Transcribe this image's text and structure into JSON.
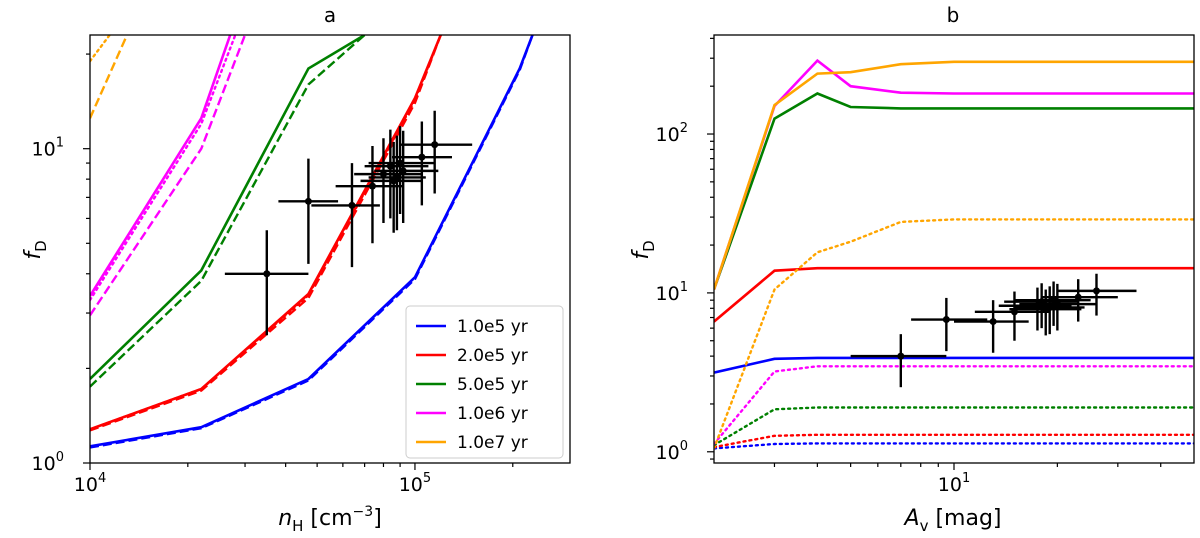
{
  "chart_data": [
    {
      "type": "line",
      "panel": "a",
      "title": "a",
      "xlabel": "n_H [cm^-3]",
      "ylabel": "f_D",
      "xscale": "log",
      "yscale": "log",
      "xlim": [
        10000,
        300000
      ],
      "ylim": [
        1,
        23
      ],
      "xticks": [
        {
          "value": 10000,
          "base": "10",
          "exp": "4"
        },
        {
          "value": 100000,
          "base": "10",
          "exp": "5"
        }
      ],
      "yticks": [
        {
          "value": 1,
          "base": "10",
          "exp": "0"
        },
        {
          "value": 10,
          "base": "10",
          "exp": "1"
        }
      ],
      "legend": {
        "position": "lower-right",
        "entries": [
          "1.0e5 yr",
          "2.0e5 yr",
          "5.0e5 yr",
          "1.0e6 yr",
          "1.0e7 yr"
        ]
      },
      "series": [
        {
          "name": "1.0e5 yr",
          "color": "#0000ff",
          "style": "solid",
          "x": [
            10000,
            22000,
            47000,
            100000,
            210000,
            230000
          ],
          "y": [
            1.13,
            1.3,
            1.85,
            3.9,
            18.0,
            23.0
          ]
        },
        {
          "name": "1.0e5 yr dashed",
          "color": "#0000ff",
          "style": "dashed",
          "x": [
            10000,
            22000,
            47000,
            100000,
            210000,
            230000
          ],
          "y": [
            1.12,
            1.29,
            1.83,
            3.85,
            17.8,
            23.0
          ]
        },
        {
          "name": "2.0e5 yr",
          "color": "#ff0000",
          "style": "solid",
          "x": [
            10000,
            22000,
            47000,
            100000,
            120000
          ],
          "y": [
            1.28,
            1.72,
            3.45,
            14.5,
            23.0
          ]
        },
        {
          "name": "2.0e5 yr dashed",
          "color": "#ff0000",
          "style": "dashed",
          "x": [
            10000,
            22000,
            47000,
            100000,
            120000
          ],
          "y": [
            1.27,
            1.7,
            3.35,
            14.0,
            23.0
          ]
        },
        {
          "name": "2.0e5 yr dotted",
          "color": "#ff0000",
          "style": "dotted",
          "x": [
            10000,
            22000,
            47000,
            100000,
            120000
          ],
          "y": [
            1.28,
            1.72,
            3.42,
            14.3,
            23.0
          ]
        },
        {
          "name": "5.0e5 yr",
          "color": "#008000",
          "style": "solid",
          "x": [
            10000,
            22000,
            47000,
            70000
          ],
          "y": [
            1.85,
            4.1,
            18.0,
            23.0
          ]
        },
        {
          "name": "5.0e5 yr dashed",
          "color": "#008000",
          "style": "dashed",
          "x": [
            10000,
            22000,
            47000,
            70000
          ],
          "y": [
            1.75,
            3.8,
            16.0,
            23.0
          ]
        },
        {
          "name": "1.0e6 yr",
          "color": "#ff00ff",
          "style": "solid",
          "x": [
            10000,
            22000,
            27000
          ],
          "y": [
            3.4,
            12.5,
            23.0
          ]
        },
        {
          "name": "1.0e6 yr dashed",
          "color": "#ff00ff",
          "style": "dashed",
          "x": [
            10000,
            22000,
            30000
          ],
          "y": [
            2.95,
            10.0,
            23.0
          ]
        },
        {
          "name": "1.0e6 yr dotted",
          "color": "#ff00ff",
          "style": "dotted",
          "x": [
            10000,
            22000,
            28000
          ],
          "y": [
            3.3,
            12.0,
            23.0
          ]
        },
        {
          "name": "1.0e7 yr dashed",
          "color": "#ffa500",
          "style": "dashed",
          "x": [
            10000,
            13000
          ],
          "y": [
            12.5,
            23.0
          ]
        },
        {
          "name": "1.0e7 yr dotted",
          "color": "#ffa500",
          "style": "dotted",
          "x": [
            10000,
            11500
          ],
          "y": [
            19.0,
            23.0
          ]
        }
      ],
      "points": [
        {
          "x": 35000,
          "y": 4.0,
          "xlo": 26000,
          "xhi": 47000,
          "ylo": 2.55,
          "yhi": 5.5
        },
        {
          "x": 47000,
          "y": 6.8,
          "xlo": 38000,
          "xhi": 58000,
          "ylo": 4.3,
          "yhi": 9.3
        },
        {
          "x": 64000,
          "y": 6.6,
          "xlo": 48000,
          "xhi": 78000,
          "ylo": 4.2,
          "yhi": 9.0
        },
        {
          "x": 74000,
          "y": 7.6,
          "xlo": 57000,
          "xhi": 92000,
          "ylo": 5.0,
          "yhi": 10.2
        },
        {
          "x": 80000,
          "y": 8.3,
          "xlo": 65000,
          "xhi": 105000,
          "ylo": 5.8,
          "yhi": 10.8
        },
        {
          "x": 84000,
          "y": 8.8,
          "xlo": 70000,
          "xhi": 110000,
          "ylo": 6.0,
          "yhi": 11.5
        },
        {
          "x": 86000,
          "y": 7.9,
          "xlo": 68000,
          "xhi": 105000,
          "ylo": 5.4,
          "yhi": 10.5
        },
        {
          "x": 88000,
          "y": 8.1,
          "xlo": 72000,
          "xhi": 108000,
          "ylo": 5.5,
          "yhi": 11.0
        },
        {
          "x": 90000,
          "y": 9.0,
          "xlo": 72000,
          "xhi": 115000,
          "ylo": 6.2,
          "yhi": 11.8
        },
        {
          "x": 92000,
          "y": 8.5,
          "xlo": 75000,
          "xhi": 118000,
          "ylo": 5.8,
          "yhi": 11.4
        },
        {
          "x": 105000,
          "y": 9.4,
          "xlo": 85000,
          "xhi": 130000,
          "ylo": 6.6,
          "yhi": 12.2
        },
        {
          "x": 115000,
          "y": 10.3,
          "xlo": 90000,
          "xhi": 150000,
          "ylo": 7.2,
          "yhi": 13.2
        }
      ]
    },
    {
      "type": "line",
      "panel": "b",
      "title": "b",
      "xlabel": "A_v [mag]",
      "ylabel": "f_D",
      "xscale": "log",
      "yscale": "log",
      "xlim": [
        2,
        50
      ],
      "ylim": [
        0.85,
        420
      ],
      "xticks": [
        {
          "value": 10,
          "base": "10",
          "exp": "1"
        }
      ],
      "yticks": [
        {
          "value": 1,
          "base": "10",
          "exp": "0"
        },
        {
          "value": 10,
          "base": "10",
          "exp": "1"
        },
        {
          "value": 100,
          "base": "10",
          "exp": "2"
        }
      ],
      "series": [
        {
          "name": "1.0e5 yr",
          "color": "#0000ff",
          "style": "solid",
          "x": [
            2,
            3,
            4,
            5,
            7,
            10,
            20,
            50
          ],
          "y": [
            3.15,
            3.85,
            3.9,
            3.9,
            3.9,
            3.9,
            3.9,
            3.9
          ]
        },
        {
          "name": "1.0e5 yr dotted",
          "color": "#0000ff",
          "style": "dotted",
          "x": [
            2,
            3,
            4,
            5,
            7,
            10,
            20,
            50
          ],
          "y": [
            1.05,
            1.12,
            1.13,
            1.13,
            1.13,
            1.13,
            1.13,
            1.13
          ]
        },
        {
          "name": "2.0e5 yr",
          "color": "#ff0000",
          "style": "solid",
          "x": [
            2,
            3,
            4,
            5,
            7,
            10,
            20,
            50
          ],
          "y": [
            6.6,
            13.8,
            14.3,
            14.3,
            14.3,
            14.3,
            14.3,
            14.3
          ]
        },
        {
          "name": "2.0e5 yr dotted",
          "color": "#ff0000",
          "style": "dotted",
          "x": [
            2,
            3,
            4,
            5,
            7,
            10,
            20,
            50
          ],
          "y": [
            1.07,
            1.26,
            1.28,
            1.28,
            1.28,
            1.28,
            1.28,
            1.28
          ]
        },
        {
          "name": "5.0e5 yr",
          "color": "#008000",
          "style": "solid",
          "x": [
            2,
            3,
            4,
            5,
            7,
            10,
            20,
            50
          ],
          "y": [
            10.5,
            125,
            180,
            148,
            145,
            145,
            145,
            145
          ]
        },
        {
          "name": "5.0e5 yr dotted",
          "color": "#008000",
          "style": "dotted",
          "x": [
            2,
            3,
            4,
            5,
            7,
            10,
            20,
            50
          ],
          "y": [
            1.1,
            1.85,
            1.9,
            1.9,
            1.9,
            1.9,
            1.9,
            1.9
          ]
        },
        {
          "name": "1.0e6 yr",
          "color": "#ff00ff",
          "style": "solid",
          "x": [
            2,
            3,
            4,
            5,
            7,
            10,
            20,
            50
          ],
          "y": [
            10.5,
            150,
            290,
            200,
            182,
            180,
            180,
            180
          ]
        },
        {
          "name": "1.0e6 yr dotted",
          "color": "#ff00ff",
          "style": "dotted",
          "x": [
            2,
            3,
            4,
            5,
            7,
            10,
            20,
            50
          ],
          "y": [
            1.12,
            3.2,
            3.45,
            3.45,
            3.45,
            3.45,
            3.45,
            3.45
          ]
        },
        {
          "name": "1.0e7 yr",
          "color": "#ffa500",
          "style": "solid",
          "x": [
            2,
            3,
            4,
            5,
            7,
            10,
            20,
            50
          ],
          "y": [
            10.5,
            152,
            240,
            245,
            275,
            285,
            285,
            285
          ]
        },
        {
          "name": "1.0e7 yr dotted",
          "color": "#ffa500",
          "style": "dotted",
          "x": [
            2,
            3,
            4,
            5,
            7,
            10,
            20,
            50
          ],
          "y": [
            1.05,
            10.5,
            18,
            21,
            28,
            29,
            29,
            29
          ]
        }
      ],
      "points": [
        {
          "x": 7.0,
          "y": 4.0,
          "xlo": 5.0,
          "xhi": 9.5,
          "ylo": 2.55,
          "yhi": 5.5
        },
        {
          "x": 9.5,
          "y": 6.8,
          "xlo": 7.5,
          "xhi": 12.5,
          "ylo": 4.3,
          "yhi": 9.3
        },
        {
          "x": 13.0,
          "y": 6.6,
          "xlo": 10.0,
          "xhi": 16.5,
          "ylo": 4.2,
          "yhi": 9.0
        },
        {
          "x": 15.0,
          "y": 7.6,
          "xlo": 11.5,
          "xhi": 19.0,
          "ylo": 5.0,
          "yhi": 10.2
        },
        {
          "x": 17.5,
          "y": 8.3,
          "xlo": 13.5,
          "xhi": 22.0,
          "ylo": 5.8,
          "yhi": 10.8
        },
        {
          "x": 18.0,
          "y": 8.8,
          "xlo": 14.0,
          "xhi": 23.0,
          "ylo": 6.0,
          "yhi": 11.5
        },
        {
          "x": 18.5,
          "y": 7.9,
          "xlo": 14.5,
          "xhi": 23.5,
          "ylo": 5.4,
          "yhi": 10.5
        },
        {
          "x": 19.0,
          "y": 8.1,
          "xlo": 15.0,
          "xhi": 24.0,
          "ylo": 5.5,
          "yhi": 11.0
        },
        {
          "x": 19.5,
          "y": 9.0,
          "xlo": 15.0,
          "xhi": 25.0,
          "ylo": 6.2,
          "yhi": 11.8
        },
        {
          "x": 20.0,
          "y": 8.5,
          "xlo": 15.5,
          "xhi": 26.0,
          "ylo": 5.8,
          "yhi": 11.4
        },
        {
          "x": 23.0,
          "y": 9.4,
          "xlo": 18.0,
          "xhi": 30.0,
          "ylo": 6.6,
          "yhi": 12.2
        },
        {
          "x": 26.0,
          "y": 10.3,
          "xlo": 20.0,
          "xhi": 34.0,
          "ylo": 7.2,
          "yhi": 13.2
        }
      ]
    }
  ]
}
